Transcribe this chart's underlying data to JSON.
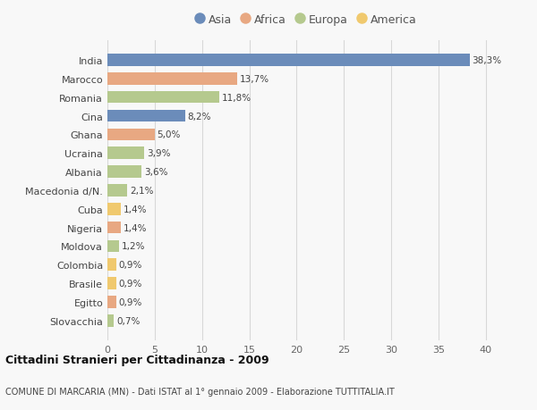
{
  "countries": [
    "India",
    "Marocco",
    "Romania",
    "Cina",
    "Ghana",
    "Ucraina",
    "Albania",
    "Macedonia d/N.",
    "Cuba",
    "Nigeria",
    "Moldova",
    "Colombia",
    "Brasile",
    "Egitto",
    "Slovacchia"
  ],
  "values": [
    38.3,
    13.7,
    11.8,
    8.2,
    5.0,
    3.9,
    3.6,
    2.1,
    1.4,
    1.4,
    1.2,
    0.9,
    0.9,
    0.9,
    0.7
  ],
  "labels": [
    "38,3%",
    "13,7%",
    "11,8%",
    "8,2%",
    "5,0%",
    "3,9%",
    "3,6%",
    "2,1%",
    "1,4%",
    "1,4%",
    "1,2%",
    "0,9%",
    "0,9%",
    "0,9%",
    "0,7%"
  ],
  "continents": [
    "Asia",
    "Africa",
    "Europa",
    "Asia",
    "Africa",
    "Europa",
    "Europa",
    "Europa",
    "America",
    "Africa",
    "Europa",
    "America",
    "America",
    "Africa",
    "Europa"
  ],
  "colors": {
    "Asia": "#6b8cba",
    "Africa": "#e8a882",
    "Europa": "#b5c98e",
    "America": "#f0c96e"
  },
  "legend_order": [
    "Asia",
    "Africa",
    "Europa",
    "America"
  ],
  "title1": "Cittadini Stranieri per Cittadinanza - 2009",
  "title2": "COMUNE DI MARCARIA (MN) - Dati ISTAT al 1° gennaio 2009 - Elaborazione TUTTITALIA.IT",
  "xlim": [
    0,
    42
  ],
  "xticks": [
    0,
    5,
    10,
    15,
    20,
    25,
    30,
    35,
    40
  ],
  "background_color": "#f8f8f8",
  "grid_color": "#d8d8d8",
  "bar_height": 0.65
}
